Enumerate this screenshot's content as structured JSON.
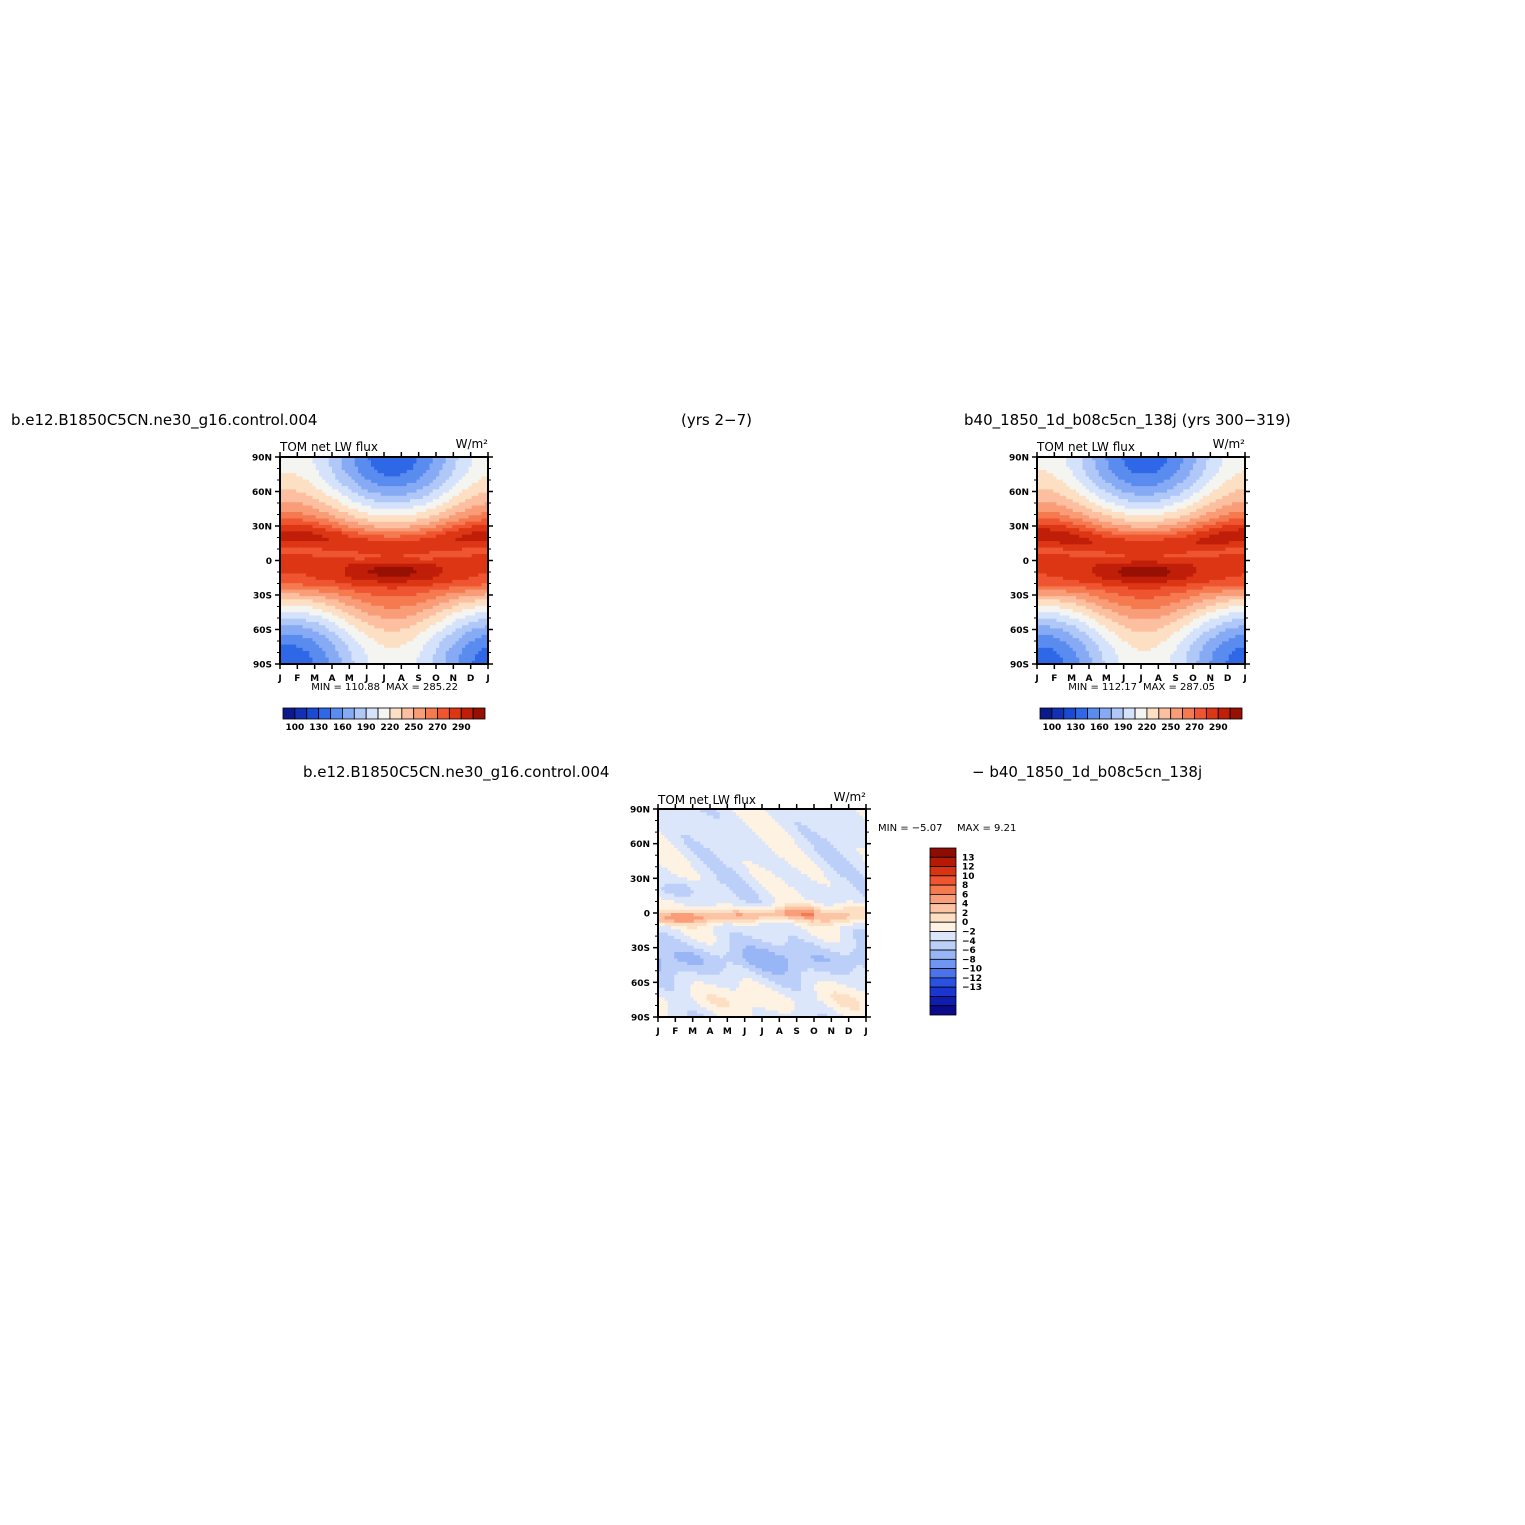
{
  "header_top": {
    "left": "b.e12.B1850C5CN.ne30_g16.control.004",
    "center": "(yrs 2−7)",
    "right": "b40_1850_1d_b08c5cn_138j (yrs 300−319)"
  },
  "header_diff": {
    "left": "b.e12.B1850C5CN.ne30_g16.control.004",
    "right": "−  b40_1850_1d_b08c5cn_138j"
  },
  "colors": {
    "abs_palette": [
      "#0a1a8a",
      "#1230b4",
      "#1a4ad2",
      "#2e68e6",
      "#5a8cf0",
      "#86aaf4",
      "#b0c8f8",
      "#d4e2fb",
      "#f4f4f0",
      "#fde0c4",
      "#fcc0a0",
      "#f99c78",
      "#f57a50",
      "#ee5530",
      "#dc3614",
      "#c01e08",
      "#981004"
    ],
    "diff_palette": [
      "#0a0a8a",
      "#0f1cb0",
      "#1a36d0",
      "#2a52e0",
      "#4b74ec",
      "#6f96f2",
      "#98b6f6",
      "#bccff9",
      "#dce6fb",
      "#fef2e2",
      "#fde0c4",
      "#fcc4a4",
      "#fa9e7a",
      "#f57a50",
      "#ee5530",
      "#d83412",
      "#b41a06",
      "#8e0c02"
    ]
  },
  "chart_data": [
    {
      "type": "heatmap",
      "title": "TOM net LW flux",
      "units": "W/m²",
      "x_ticks": [
        "J",
        "F",
        "M",
        "A",
        "M",
        "J",
        "J",
        "A",
        "S",
        "O",
        "N",
        "D",
        "J"
      ],
      "y_ticks": [
        "90N",
        "60N",
        "30N",
        "0",
        "30S",
        "60S",
        "90S"
      ],
      "ylim": [
        -90,
        90
      ],
      "min_label": "MIN = 110.88",
      "max_label": "MAX = 285.22",
      "colorbar": {
        "orientation": "horizontal",
        "labels": [
          "100",
          "130",
          "160",
          "190",
          "220",
          "250",
          "270",
          "290"
        ]
      }
    },
    {
      "type": "heatmap",
      "title": "TOM net LW flux",
      "units": "W/m²",
      "x_ticks": [
        "J",
        "F",
        "M",
        "A",
        "M",
        "J",
        "J",
        "A",
        "S",
        "O",
        "N",
        "D",
        "J"
      ],
      "y_ticks": [
        "90N",
        "60N",
        "30N",
        "0",
        "30S",
        "60S",
        "90S"
      ],
      "ylim": [
        -90,
        90
      ],
      "min_label": "MIN = 112.17",
      "max_label": "MAX = 287.05",
      "colorbar": {
        "orientation": "horizontal",
        "labels": [
          "100",
          "130",
          "160",
          "190",
          "220",
          "250",
          "270",
          "290"
        ]
      }
    },
    {
      "type": "heatmap",
      "title": "TOM net LW flux",
      "units": "W/m²",
      "x_ticks": [
        "J",
        "F",
        "M",
        "A",
        "M",
        "J",
        "J",
        "A",
        "S",
        "O",
        "N",
        "D",
        "J"
      ],
      "y_ticks": [
        "90N",
        "60N",
        "30N",
        "0",
        "30S",
        "60S",
        "90S"
      ],
      "ylim": [
        -90,
        90
      ],
      "min_label": "MIN =   −5.07",
      "max_label": "MAX =     9.21",
      "colorbar": {
        "orientation": "vertical",
        "labels": [
          "13",
          "12",
          "10",
          "8",
          "6",
          "4",
          "2",
          "0",
          "−2",
          "−4",
          "−6",
          "−8",
          "−10",
          "−12",
          "−13"
        ]
      }
    }
  ]
}
